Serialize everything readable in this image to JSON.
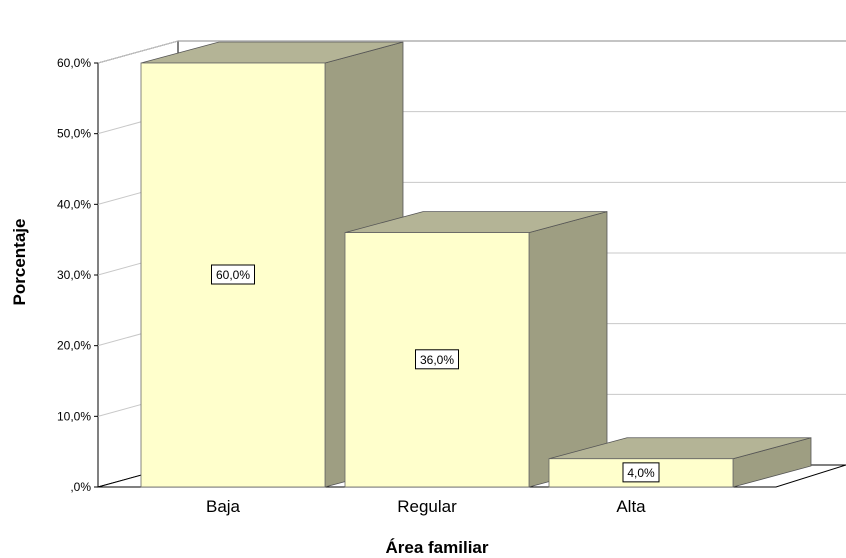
{
  "chart_data": {
    "type": "bar",
    "categories": [
      "Baja",
      "Regular",
      "Alta"
    ],
    "values": [
      60.0,
      36.0,
      4.0
    ],
    "data_labels": [
      "60,0%",
      "36,0%",
      "4,0%"
    ],
    "xlabel": "Área familiar",
    "ylabel": "Porcentaje",
    "ylim": [
      0,
      60
    ],
    "yticks": [
      0,
      10,
      20,
      30,
      40,
      50,
      60
    ],
    "ytick_labels": [
      ",0%",
      "10,0%",
      "20,0%",
      "30,0%",
      "40,0%",
      "50,0%",
      "60,0%"
    ],
    "grid": true,
    "style": "3d",
    "colors": {
      "bar_front": "#ffffcc",
      "bar_side": "#9e9e82",
      "bar_top": "#b4b496",
      "gridline": "#c8c8c8",
      "axis": "#000000"
    }
  }
}
